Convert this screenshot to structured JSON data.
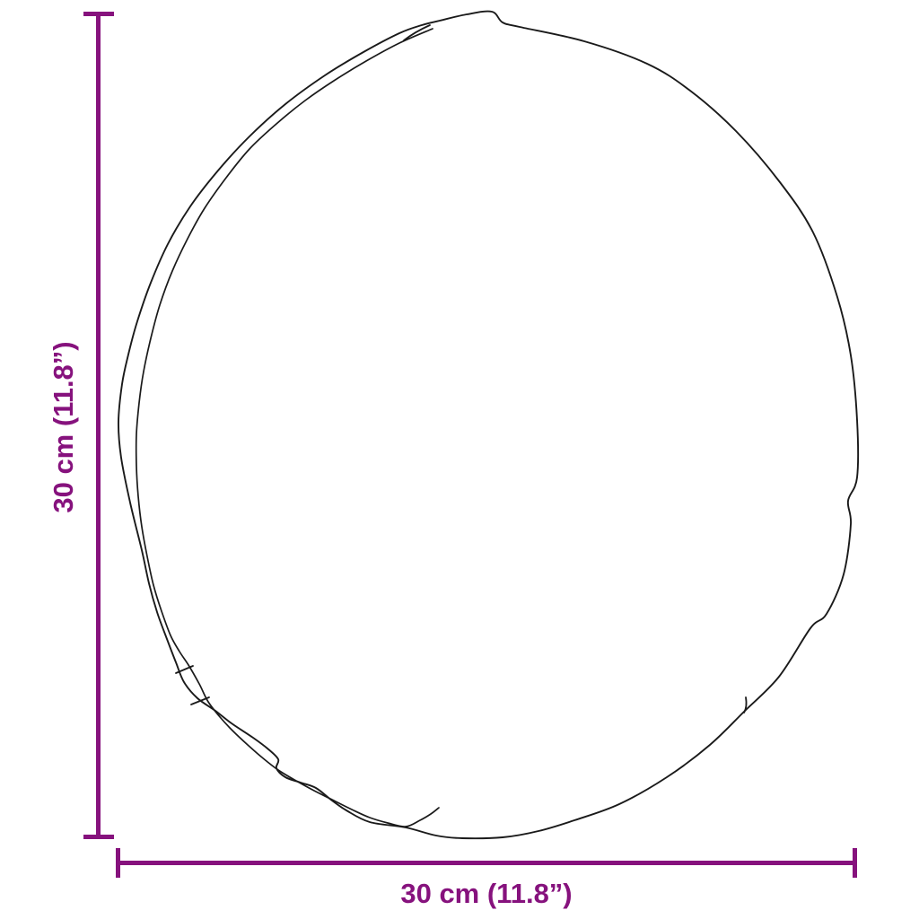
{
  "diagram": {
    "kind": "product dimension diagram",
    "subject": "round cushion pad outline, top view",
    "background_color": "#ffffff",
    "outline_color": "#1a1a1a"
  },
  "dimensions": {
    "color": "#86127D",
    "vertical": {
      "label": "30 cm (11.8”)",
      "value_cm": 30,
      "value_inches": 11.8,
      "orientation": "vertical"
    },
    "horizontal": {
      "label": "30 cm (11.8”)",
      "value_cm": 30,
      "value_inches": 11.8,
      "orientation": "horizontal"
    }
  }
}
